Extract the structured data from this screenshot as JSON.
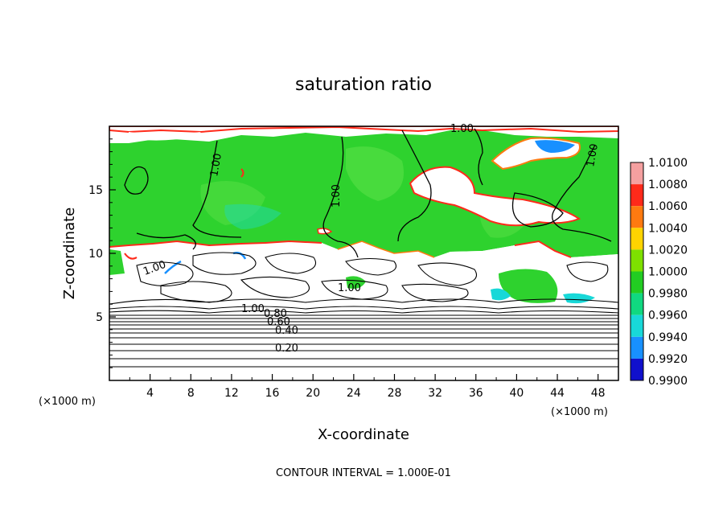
{
  "chart_data": {
    "type": "heatmap",
    "title": "saturation ratio",
    "xlabel": "X-coordinate",
    "ylabel": "Z-coordinate",
    "x_unit": "(×1000 m)",
    "z_unit": "(×1000 m)",
    "xlim": [
      0,
      50
    ],
    "ylim": [
      0,
      20
    ],
    "x_ticks": [
      4,
      8,
      12,
      16,
      20,
      24,
      28,
      32,
      36,
      40,
      44,
      48
    ],
    "y_ticks": [
      5,
      10,
      15
    ],
    "footer": "CONTOUR INTERVAL = 1.000E-01",
    "colorbar": {
      "levels": [
        "1.0100",
        "1.0080",
        "1.0060",
        "1.0040",
        "1.0020",
        "1.0000",
        "0.9980",
        "0.9960",
        "0.9940",
        "0.9920",
        "0.9900"
      ],
      "colors": [
        "#f5a0a0",
        "#ff2a1a",
        "#ff7a10",
        "#ffd400",
        "#7ee000",
        "#22cc22",
        "#10d880",
        "#18d8d8",
        "#1890ff",
        "#1010cc",
        "#6a0a9a"
      ]
    },
    "contour_labels": [
      "1.00",
      "1.00",
      "1.00",
      "1.00",
      "1.00",
      "1.00",
      "1.00",
      "0.80",
      "0.60",
      "0.40",
      "0.20"
    ],
    "grid": false
  }
}
